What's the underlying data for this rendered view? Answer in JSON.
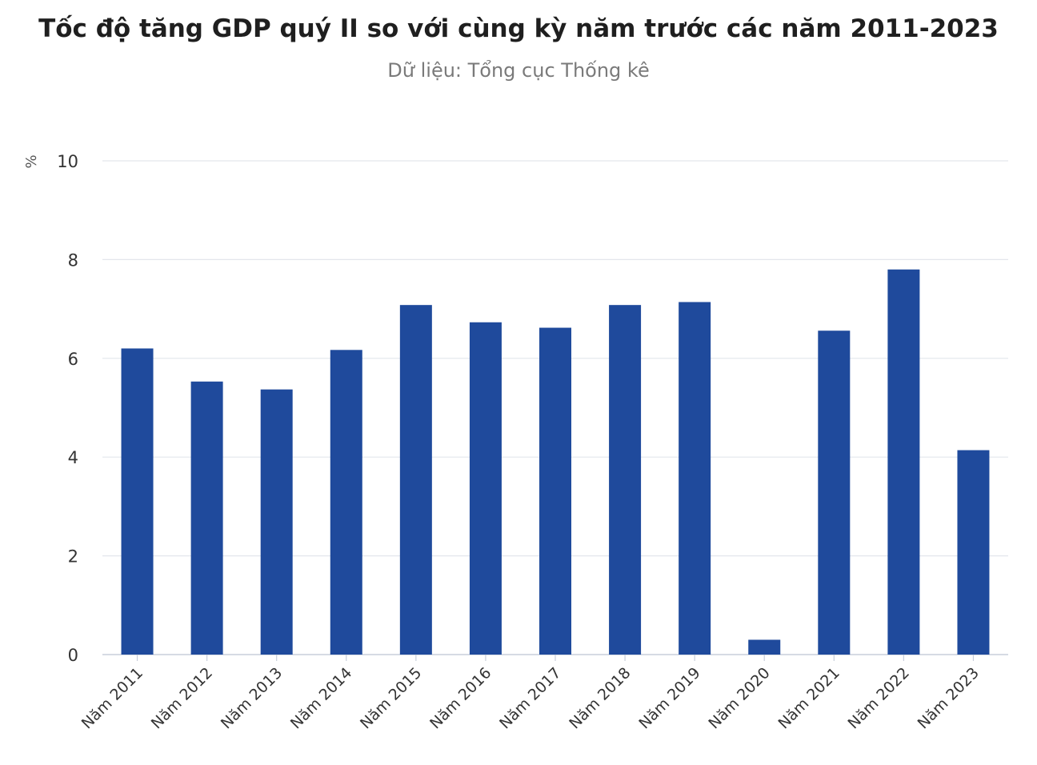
{
  "chart_data": {
    "type": "bar",
    "title": "Tốc độ tăng GDP quý II so với cùng kỳ năm trước các năm 2011-2023",
    "subtitle": "Dữ liệu: Tổng cục Thống kê",
    "ylabel": "%",
    "xlabel": "",
    "ylim": [
      0,
      10
    ],
    "yticks": [
      0,
      2,
      4,
      6,
      8,
      10
    ],
    "grid": true,
    "categories": [
      "Năm 2011",
      "Năm 2012",
      "Năm 2013",
      "Năm 2014",
      "Năm 2015",
      "Năm 2016",
      "Năm 2017",
      "Năm 2018",
      "Năm 2019",
      "Năm 2020",
      "Năm 2021",
      "Năm 2022",
      "Năm 2023"
    ],
    "values": [
      6.2,
      5.53,
      5.37,
      6.17,
      7.08,
      6.73,
      6.62,
      7.08,
      7.14,
      0.3,
      6.56,
      7.8,
      4.14
    ],
    "bar_color": "#1f4a9c"
  }
}
